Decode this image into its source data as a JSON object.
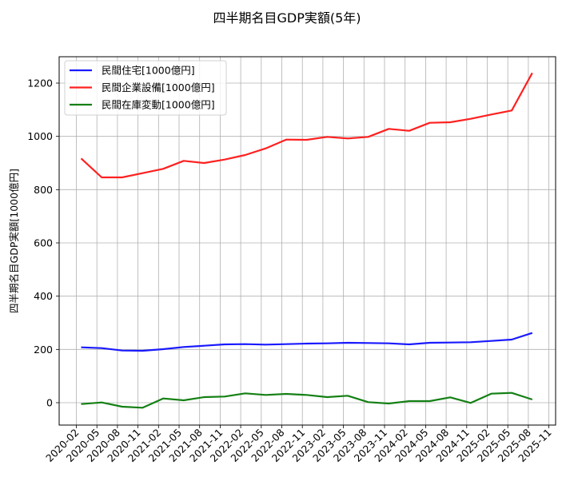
{
  "chart_data": {
    "type": "line",
    "title": "四半期名目GDP実額(5年)",
    "xlabel": "",
    "ylabel": "四半期名目GDP実額[1000億円]",
    "ylim": [
      -80,
      1290
    ],
    "yticks": [
      0,
      200,
      400,
      600,
      800,
      1000,
      1200
    ],
    "xticks": [
      "2020-02",
      "2020-05",
      "2020-08",
      "2020-11",
      "2021-02",
      "2021-05",
      "2021-08",
      "2021-11",
      "2022-02",
      "2022-05",
      "2022-08",
      "2022-11",
      "2023-02",
      "2023-05",
      "2023-08",
      "2023-11",
      "2024-02",
      "2024-05",
      "2024-08",
      "2024-11",
      "2025-02",
      "2025-05",
      "2025-08",
      "2025-11"
    ],
    "grid": true,
    "legend_position": "upper left",
    "x": [
      "2020-Q1",
      "2020-Q2",
      "2020-Q3",
      "2020-Q4",
      "2021-Q1",
      "2021-Q2",
      "2021-Q3",
      "2021-Q4",
      "2022-Q1",
      "2022-Q2",
      "2022-Q3",
      "2022-Q4",
      "2023-Q1",
      "2023-Q2",
      "2023-Q3",
      "2023-Q4",
      "2024-Q1",
      "2024-Q2",
      "2024-Q3",
      "2024-Q4",
      "2025-Q1",
      "2025-Q2",
      "2025-Q3"
    ],
    "series": [
      {
        "name": "民間住宅[1000億円]",
        "color": "#1a1aff",
        "values": [
          208,
          205,
          196,
          195,
          201,
          209,
          214,
          219,
          220,
          218,
          220,
          222,
          223,
          225,
          224,
          223,
          219,
          225,
          226,
          227,
          232,
          237,
          262
        ]
      },
      {
        "name": "民間企業設備[1000億円]",
        "color": "#ff2020",
        "values": [
          917,
          846,
          846,
          862,
          878,
          908,
          900,
          913,
          930,
          955,
          988,
          987,
          998,
          992,
          998,
          1028,
          1021,
          1051,
          1053,
          1066,
          1082,
          1097,
          1238
        ]
      },
      {
        "name": "民間在庫変動[1000億円]",
        "color": "#148014",
        "values": [
          -5,
          1,
          -15,
          -19,
          16,
          9,
          21,
          23,
          35,
          29,
          33,
          29,
          21,
          26,
          2,
          -3,
          6,
          6,
          20,
          -1,
          34,
          37,
          12
        ]
      }
    ]
  }
}
